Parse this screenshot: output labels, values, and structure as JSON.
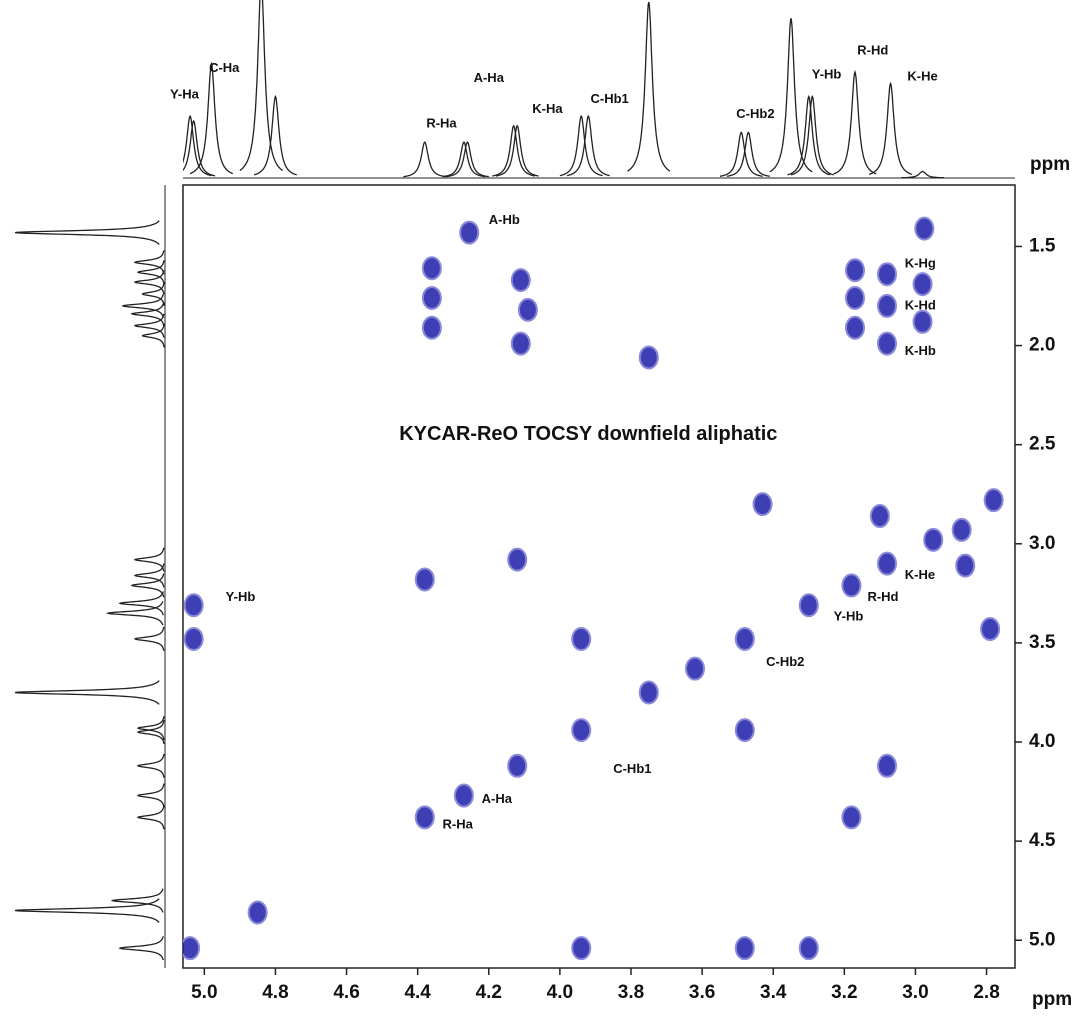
{
  "chart_data": {
    "type": "scatter",
    "title": "KYCAR-ReO TOCSY downfield aliphatic",
    "title_pos": [
      3.92,
      2.45
    ],
    "xlabel": "ppm",
    "top_xlabel": "ppm",
    "color": "#1c1ca8",
    "xlim": [
      5.06,
      2.72
    ],
    "ylim": [
      1.19,
      5.14
    ],
    "xticks": [
      {
        "value": 5,
        "label": "5.0"
      },
      4.8,
      4.6,
      4.4,
      4.2,
      {
        "value": 4,
        "label": "4.0"
      },
      3.8,
      3.6,
      3.4,
      3.2,
      {
        "value": 3,
        "label": "3.0"
      },
      2.8
    ],
    "yticks": [
      1.5,
      {
        "value": 2,
        "label": "2.0"
      },
      2.5,
      {
        "value": 3,
        "label": "3.0"
      },
      3.5,
      {
        "value": 4,
        "label": "4.0"
      },
      4.5,
      {
        "value": 5,
        "label": "5.0"
      }
    ],
    "x": [
      4.255,
      4.36,
      4.36,
      4.36,
      4.11,
      4.09,
      4.11,
      3.75,
      2.975,
      3.17,
      3.17,
      3.17,
      3.08,
      3.08,
      3.08,
      2.98,
      2.98,
      5.04,
      4.85,
      4.38,
      4.27,
      4.12,
      3.94,
      3.75,
      3.48,
      3.3,
      3.18,
      3.08,
      2.95,
      2.87,
      2.78,
      5.03,
      5.03,
      3.3,
      3.48,
      3.94,
      4.38,
      4.12,
      3.18,
      3.08,
      3.94,
      3.48,
      3.43,
      3.1,
      2.86,
      2.79,
      3.62
    ],
    "y": [
      1.43,
      1.61,
      1.76,
      1.91,
      1.67,
      1.82,
      1.99,
      2.06,
      1.41,
      1.62,
      1.76,
      1.91,
      1.64,
      1.8,
      1.99,
      1.69,
      1.88,
      5.04,
      4.86,
      4.38,
      4.27,
      4.12,
      3.94,
      3.75,
      3.48,
      3.31,
      3.21,
      3.1,
      2.98,
      2.93,
      2.78,
      3.31,
      3.48,
      5.04,
      5.04,
      5.04,
      3.18,
      3.08,
      4.38,
      4.12,
      3.48,
      3.94,
      2.8,
      2.86,
      3.11,
      3.43,
      3.63
    ],
    "annotations": [
      {
        "text": "A-Hb",
        "x": 4.2,
        "y": 1.37
      },
      {
        "text": "K-Hg",
        "x": 3.03,
        "y": 1.59
      },
      {
        "text": "K-Hd",
        "x": 3.03,
        "y": 1.8
      },
      {
        "text": "K-Hb",
        "x": 3.03,
        "y": 2.03
      },
      {
        "text": "Y-Hb",
        "x": 4.94,
        "y": 3.27
      },
      {
        "text": "K-He",
        "x": 3.03,
        "y": 3.16
      },
      {
        "text": "R-Hd",
        "x": 3.135,
        "y": 3.27
      },
      {
        "text": "Y-Hb",
        "x": 3.23,
        "y": 3.37
      },
      {
        "text": "C-Hb2",
        "x": 3.42,
        "y": 3.6
      },
      {
        "text": "C-Hb1",
        "x": 3.85,
        "y": 4.14
      },
      {
        "text": "A-Ha",
        "x": 4.22,
        "y": 4.29
      },
      {
        "text": "R-Ha",
        "x": 4.33,
        "y": 4.42
      }
    ],
    "top_trace": {
      "x": [
        5.04,
        5.03,
        4.98,
        4.84,
        4.8,
        4.38,
        4.27,
        4.26,
        4.13,
        4.12,
        3.94,
        3.92,
        3.75,
        3.49,
        3.47,
        3.35,
        3.3,
        3.29,
        3.17,
        3.07,
        2.98
      ],
      "values": [
        38,
        35,
        70,
        120,
        50,
        22,
        22,
        22,
        32,
        32,
        38,
        38,
        108,
        28,
        28,
        98,
        50,
        50,
        65,
        58,
        4
      ],
      "labels": [
        {
          "text": "Y-Ha",
          "x": 5.056,
          "y": 51
        },
        {
          "text": "C-Ha",
          "x": 4.944,
          "y": 67
        },
        {
          "text": "A-Ha",
          "x": 4.2,
          "y": 61
        },
        {
          "text": "R-Ha",
          "x": 4.333,
          "y": 33
        },
        {
          "text": "K-Ha",
          "x": 4.035,
          "y": 42
        },
        {
          "text": "C-Hb1",
          "x": 3.86,
          "y": 48
        },
        {
          "text": "C-Hb2",
          "x": 3.45,
          "y": 39
        },
        {
          "text": "Y-Hb",
          "x": 3.25,
          "y": 63
        },
        {
          "text": "R-Hd",
          "x": 3.12,
          "y": 78
        },
        {
          "text": "K-He",
          "x": 2.98,
          "y": 62
        }
      ]
    },
    "left_trace": {
      "y": [
        1.43,
        1.58,
        1.63,
        1.68,
        1.74,
        1.8,
        1.84,
        1.9,
        1.95,
        3.08,
        3.16,
        3.21,
        3.3,
        3.35,
        3.48,
        3.75,
        3.93,
        3.95,
        4.12,
        4.27,
        4.38,
        4.8,
        4.85,
        5.04
      ],
      "values": [
        100,
        20,
        18,
        20,
        15,
        28,
        22,
        20,
        15,
        20,
        20,
        22,
        30,
        38,
        20,
        100,
        18,
        18,
        18,
        18,
        18,
        35,
        100,
        30
      ]
    }
  }
}
